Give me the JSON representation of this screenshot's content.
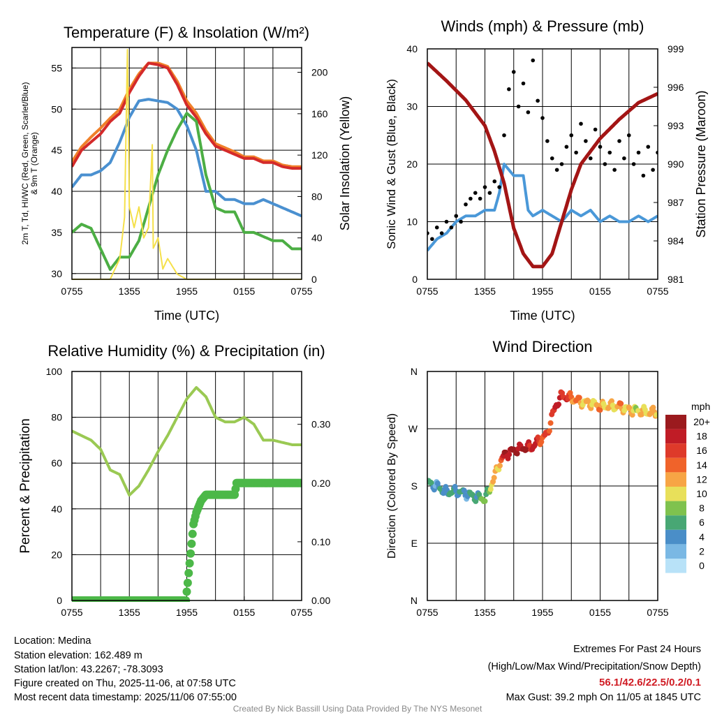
{
  "chart_data": [
    {
      "type": "line",
      "title": "Temperature (F) & Insolation (W/m²)",
      "xlabel": "Time (UTC)",
      "ylabel": [
        "2m T, Td, HI/WC (Red, Green, Scarlet/Blue)",
        "& 9m T (Orange)"
      ],
      "y2label": "Solar Insolation (Yellow)",
      "xlim": [
        0,
        24
      ],
      "xtick_labels": [
        "0755",
        "1355",
        "1955",
        "0155",
        "0755"
      ],
      "ylim": [
        29.3,
        57.5
      ],
      "yticks": [
        30,
        35,
        40,
        45,
        50,
        55
      ],
      "y2lim": [
        0,
        224
      ],
      "y2ticks": [
        0,
        40,
        80,
        120,
        160,
        200
      ],
      "series": [
        {
          "name": "9m T (Orange)",
          "axis": "left",
          "color": "#f0802a",
          "x": [
            0,
            1,
            2,
            3,
            4,
            5,
            6,
            7,
            8,
            9,
            10,
            11,
            12,
            13,
            14,
            15,
            16,
            17,
            18,
            19,
            20,
            21,
            22,
            23,
            24
          ],
          "values": [
            43.6,
            45.4,
            46.6,
            47.7,
            48.9,
            50,
            52.4,
            54.3,
            55.6,
            55.6,
            55.2,
            53.4,
            51,
            49.5,
            47.4,
            45.8,
            45.3,
            44.8,
            44.2,
            44.2,
            43.7,
            43.7,
            43.2,
            43,
            43
          ]
        },
        {
          "name": "2m T (Red)",
          "axis": "left",
          "color": "#d42a2a",
          "x": [
            0,
            1,
            2,
            3,
            4,
            5,
            6,
            7,
            8,
            9,
            10,
            11,
            12,
            13,
            14,
            15,
            16,
            17,
            18,
            19,
            20,
            21,
            22,
            23,
            24
          ],
          "values": [
            43,
            45,
            46,
            47,
            48.5,
            49.5,
            52,
            54,
            55.6,
            55.4,
            55,
            53,
            50.5,
            49,
            47,
            45.5,
            45,
            44.5,
            44,
            44,
            43.5,
            43.5,
            43,
            42.8,
            42.8
          ]
        },
        {
          "name": "HI/WC (Blue)",
          "axis": "left",
          "color": "#4a90d0",
          "x": [
            0,
            1,
            2,
            3,
            4,
            5,
            6,
            7,
            8,
            9,
            10,
            11,
            12,
            13,
            14,
            15,
            16,
            17,
            18,
            19,
            20,
            21,
            22,
            23,
            24
          ],
          "values": [
            40.5,
            42,
            42,
            42.5,
            43.5,
            46,
            49,
            51,
            51.2,
            51,
            50.8,
            50,
            48,
            45,
            40,
            40,
            39,
            39,
            38.5,
            38.5,
            39,
            38.5,
            38,
            37.5,
            37
          ]
        },
        {
          "name": "Td (Green)",
          "axis": "left",
          "color": "#4cae44",
          "x": [
            0,
            1,
            2,
            3,
            4,
            5,
            6,
            7,
            8,
            9,
            10,
            11,
            12,
            13,
            14,
            15,
            16,
            17,
            18,
            19,
            20,
            21,
            22,
            23,
            24
          ],
          "values": [
            35,
            36,
            35.5,
            33,
            30.5,
            32,
            32,
            34,
            38,
            42,
            45,
            47.5,
            49.5,
            48.5,
            42,
            38,
            37.5,
            37.5,
            35,
            35,
            34.5,
            34,
            34,
            33,
            33
          ]
        },
        {
          "name": "Solar Insolation (Yellow)",
          "axis": "right",
          "color": "#f5e04a",
          "x": [
            0,
            4,
            4.5,
            5,
            5.5,
            5.8,
            6,
            6.5,
            7,
            7.5,
            8,
            8.4,
            8.5,
            9,
            9.5,
            10,
            11,
            12,
            24
          ],
          "values": [
            0,
            0,
            10,
            20,
            60,
            222,
            70,
            50,
            70,
            40,
            50,
            130,
            30,
            40,
            10,
            20,
            5,
            0,
            0
          ]
        }
      ]
    },
    {
      "type": "line",
      "title": "Winds (mph) & Pressure (mb)",
      "xlabel": "Time (UTC)",
      "ylabel": "Sonic Wind & Gust (Blue, Black)",
      "y2label": "Station Pressure (Maroon)",
      "xlim": [
        0,
        24
      ],
      "xtick_labels": [
        "0755",
        "1355",
        "1955",
        "0155",
        "0755"
      ],
      "ylim": [
        0,
        40
      ],
      "yticks": [
        0,
        10,
        20,
        30,
        40
      ],
      "y2lim": [
        981,
        999
      ],
      "y2ticks": [
        981,
        984,
        987,
        990,
        993,
        996,
        999
      ],
      "series": [
        {
          "name": "Sonic Wind (Blue)",
          "axis": "left",
          "kind": "line",
          "color": "#4a98d8",
          "x": [
            0,
            1,
            2,
            3,
            4,
            5,
            6,
            7,
            7.5,
            8,
            9,
            10,
            10.5,
            11,
            12,
            13,
            14,
            15,
            16,
            17,
            18,
            19,
            20,
            21,
            22,
            23,
            24
          ],
          "values": [
            5,
            7,
            8,
            10,
            11,
            11,
            12,
            12,
            15,
            20,
            18,
            18,
            12,
            11,
            12,
            11,
            10,
            12,
            11,
            12,
            10,
            11,
            10,
            10,
            11,
            10,
            11
          ]
        },
        {
          "name": "Gust (Black)",
          "axis": "left",
          "kind": "scatter",
          "color": "#000000",
          "x_start": 0,
          "x_step": 0.5,
          "values": [
            8,
            7,
            9,
            8,
            10,
            9,
            11,
            10,
            13,
            14,
            15,
            14,
            16,
            15,
            17,
            16,
            25,
            33,
            36,
            30,
            34,
            29,
            38,
            31,
            28,
            24,
            21,
            19,
            20,
            23,
            25,
            22,
            27,
            24,
            21,
            26,
            23,
            20,
            22,
            19,
            24,
            21,
            25,
            20,
            22,
            18,
            23,
            19,
            22
          ]
        },
        {
          "name": "Station Pressure (Maroon)",
          "axis": "right",
          "kind": "line",
          "color": "#a31515",
          "x": [
            0,
            2,
            4,
            6,
            7,
            8,
            9,
            10,
            11,
            12,
            13,
            14,
            15,
            16,
            18,
            20,
            22,
            24
          ],
          "values": [
            997.9,
            996.5,
            995,
            993,
            991,
            988.5,
            985,
            983,
            982,
            982,
            983,
            985.5,
            988,
            990,
            992,
            993.5,
            994.8,
            995.5
          ]
        }
      ]
    },
    {
      "type": "line",
      "title": "Relative Humidity (%) & Precipitation (in)",
      "xlabel": "",
      "ylabel": "Percent & Precipitation",
      "xlim": [
        0,
        24
      ],
      "xtick_labels": [
        "0755",
        "1355",
        "1955",
        "0155",
        "0755"
      ],
      "ylim": [
        0,
        100
      ],
      "yticks": [
        0,
        20,
        40,
        60,
        80,
        100
      ],
      "y2lim": [
        0,
        0.39
      ],
      "y2ticks": [
        "0.00",
        "0.10",
        "0.20",
        "0.30"
      ],
      "series": [
        {
          "name": "Relative Humidity",
          "axis": "left",
          "kind": "line",
          "color": "#9ac953",
          "x": [
            0,
            1,
            2,
            3,
            4,
            5,
            6,
            7,
            8,
            9,
            10,
            11,
            12,
            13,
            14,
            15,
            16,
            17,
            18,
            19,
            20,
            21,
            22,
            23,
            24
          ],
          "values": [
            74,
            72,
            70,
            66,
            57,
            55,
            46,
            50,
            57,
            65,
            72,
            80,
            88,
            93,
            89,
            80,
            78,
            78,
            80,
            77,
            70,
            70,
            69,
            68,
            68
          ]
        },
        {
          "name": "Precipitation",
          "axis": "right",
          "kind": "dots",
          "color": "#4cb848",
          "x": [
            0,
            11.9,
            12.1,
            12.4,
            12.7,
            13,
            13.5,
            14,
            17,
            17.2,
            24
          ],
          "values": [
            0,
            0,
            0.03,
            0.08,
            0.13,
            0.15,
            0.17,
            0.18,
            0.18,
            0.2,
            0.2
          ]
        }
      ]
    },
    {
      "type": "scatter",
      "title": "Wind Direction",
      "xlabel": "",
      "ylabel": "Direction (Colored By Speed)",
      "xlim": [
        0,
        24
      ],
      "xtick_labels": [
        "0755",
        "1355",
        "1955",
        "0155",
        "0755"
      ],
      "ylim": [
        0,
        360
      ],
      "yticks": [
        0,
        90,
        180,
        270,
        360
      ],
      "ytick_labels": [
        "N",
        "E",
        "S",
        "W",
        "N"
      ],
      "series": [
        {
          "name": "Wind Direction",
          "x": [
            0,
            1,
            2,
            3,
            4,
            5,
            6,
            6.5,
            7,
            7.5,
            8,
            9,
            10,
            11,
            11.5,
            12,
            12.5,
            13,
            13.5,
            14,
            15,
            16,
            17,
            18,
            19,
            20,
            21,
            22,
            23,
            24
          ],
          "direction": [
            185,
            180,
            170,
            172,
            168,
            163,
            160,
            175,
            195,
            215,
            228,
            236,
            240,
            242,
            250,
            255,
            262,
            290,
            310,
            322,
            318,
            312,
            310,
            305,
            306,
            305,
            300,
            298,
            296,
            296
          ],
          "speed": [
            5,
            4,
            5,
            6,
            4,
            6,
            7,
            9,
            11,
            12,
            18,
            20,
            19,
            18,
            16,
            15,
            14,
            17,
            17,
            18,
            14,
            12,
            11,
            12,
            10,
            12,
            11,
            10,
            11,
            12
          ]
        }
      ],
      "colorbar": {
        "title": "mph",
        "labels": [
          "20+",
          "18",
          "16",
          "14",
          "12",
          "10",
          "8",
          "6",
          "4",
          "2",
          "0"
        ],
        "colors": [
          "#9b1a1e",
          "#c01c26",
          "#de3a2a",
          "#f0632a",
          "#f7a545",
          "#e8e05a",
          "#7fc24e",
          "#48a774",
          "#4a8ec8",
          "#7ab8e4",
          "#b8e2f8"
        ]
      }
    }
  ],
  "info": {
    "location": "Location: Medina",
    "elevation": "Station elevation: 162.489 m",
    "latlon": "Station lat/lon: 43.2267; -78.3093",
    "created": "Figure created on Thu, 2025-11-06, at 07:58 UTC",
    "recent": "Most recent data timestamp: 2025/11/06 07:55:00"
  },
  "extremes": {
    "heading": "Extremes For Past 24 Hours",
    "legend": "(High/Low/Max Wind/Precipitation/Snow Depth)",
    "values": "56.1/42.6/22.5/0.2/0.1",
    "max_gust": "Max Gust: 39.2 mph On 11/05 at 1845 UTC"
  },
  "credit": "Created By Nick Bassill Using Data Provided By The NYS Mesonet"
}
